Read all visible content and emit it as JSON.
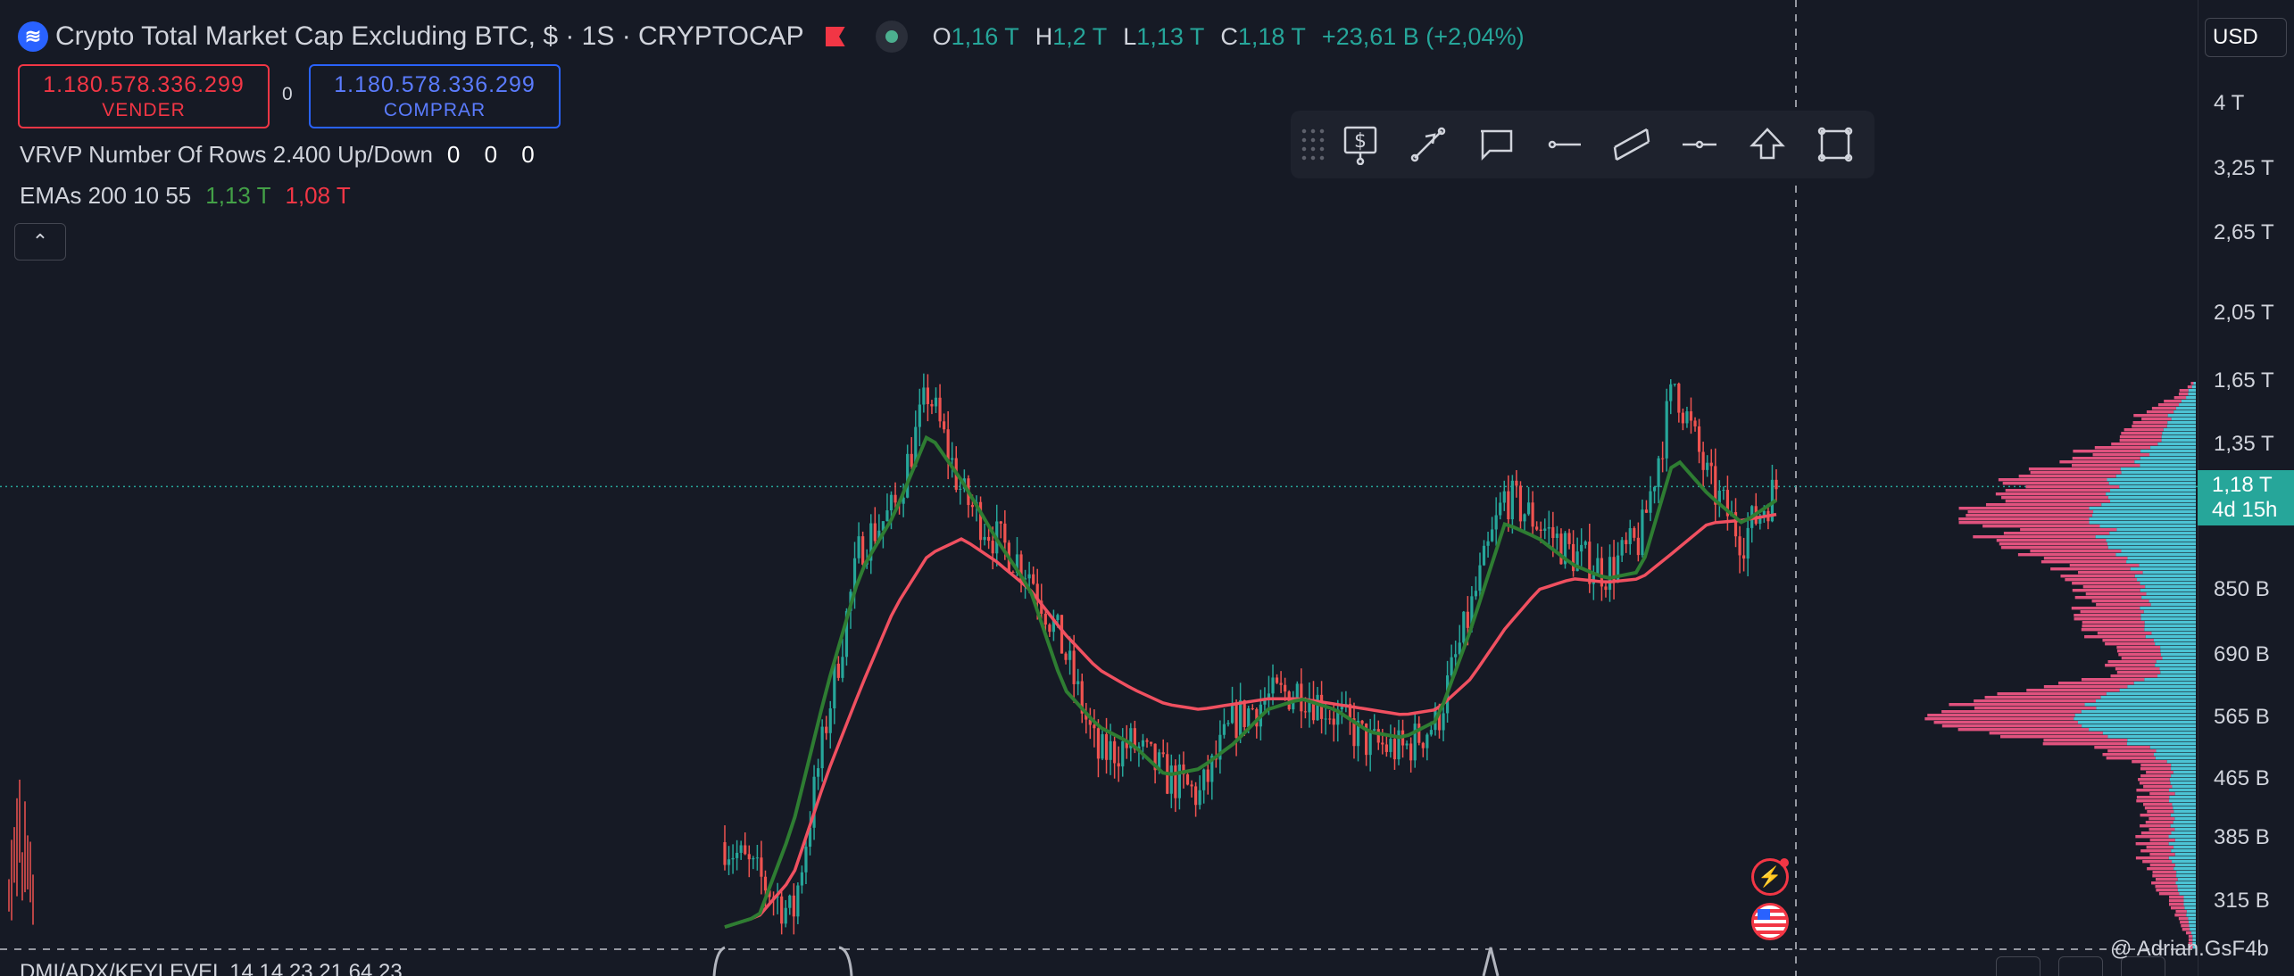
{
  "symbol": {
    "title": "Crypto Total Market Cap Excluding BTC, $ · 1S · CRYPTOCAP",
    "logo_icon": "cryptocap-logo-icon",
    "ohlc": [
      {
        "k": "O",
        "v": "1,16 T"
      },
      {
        "k": "H",
        "v": "1,2 T"
      },
      {
        "k": "L",
        "v": "1,13 T"
      },
      {
        "k": "C",
        "v": "1,18 T"
      },
      {
        "k": "",
        "v": "+23,61 B (+2,04%)"
      }
    ]
  },
  "trade": {
    "sell_price": "1.180.578.336.299",
    "sell_label": "VENDER",
    "spread": "0",
    "buy_price": "1.180.578.336.299",
    "buy_label": "COMPRAR"
  },
  "indicators": {
    "vrvp_label": "VRVP Number Of Rows 2.400 Up/Down",
    "vrvp_values": "0 0 0",
    "ema_label": "EMAs 200 10 55",
    "ema_value_1": "1,13 T",
    "ema_value_2": "1,08 T",
    "collapse_icon": "chevron-up-icon"
  },
  "toolbar": {
    "tools": [
      "price-label-icon",
      "trend-line-icon",
      "callout-icon",
      "horizontal-ray-icon",
      "parallel-channel-icon",
      "horizontal-line-icon",
      "arrow-up-icon",
      "rectangle-icon"
    ]
  },
  "price_axis": {
    "currency": "USD",
    "ticks": [
      "4 T",
      "3,25 T",
      "2,65 T",
      "2,05 T",
      "1,65 T",
      "1,35 T",
      "850 B",
      "690 B",
      "565 B",
      "465 B",
      "385 B",
      "315 B"
    ],
    "tick_values": [
      4000,
      3250,
      2650,
      2050,
      1650,
      1350,
      850,
      690,
      565,
      465,
      385,
      315
    ],
    "current_price": "1,18 T",
    "current_value": 1180,
    "countdown": "4d 15h"
  },
  "bottom": {
    "indicator_text": "DMI/ADX/KEYLEVEL 14 14 23  21 64 23",
    "watermark": "@ Adrian.GsF4b"
  },
  "colors": {
    "up": "#26a69a",
    "down": "#ef5350",
    "ema_fast": "#2e7d32",
    "ema_slow": "#f05060",
    "vp_up": "#4cc3d4",
    "vp_down": "#e0527e"
  },
  "chart_data": {
    "type": "candlestick",
    "scale": "log",
    "ylim": [
      290,
      4500
    ],
    "series": [
      {
        "name": "price",
        "values": [
          380,
          340,
          300,
          560,
          980,
          1100,
          1600,
          1150,
          1000,
          900,
          700,
          500,
          520,
          470,
          440,
          560,
          600,
          620,
          570,
          520,
          510,
          560,
          800,
          1150,
          1050,
          950,
          900,
          1000,
          1650,
          1200,
          1000,
          1180
        ]
      },
      {
        "name": "ema_fast",
        "values": [
          290,
          300,
          400,
          620,
          900,
          1080,
          1400,
          1200,
          1000,
          850,
          620,
          550,
          520,
          470,
          480,
          520,
          580,
          600,
          580,
          540,
          530,
          560,
          750,
          1050,
          1000,
          920,
          880,
          900,
          1300,
          1150,
          1050,
          1130
        ]
      },
      {
        "name": "ema_slow",
        "values": [
          290,
          300,
          340,
          470,
          620,
          800,
          950,
          1000,
          930,
          850,
          740,
          660,
          620,
          590,
          580,
          590,
          600,
          600,
          590,
          580,
          570,
          580,
          640,
          750,
          850,
          880,
          870,
          880,
          960,
          1050,
          1060,
          1080
        ]
      }
    ]
  }
}
